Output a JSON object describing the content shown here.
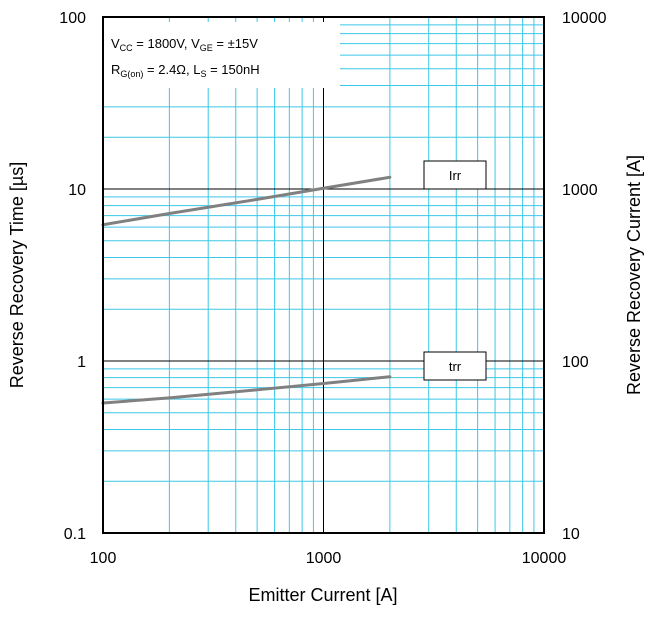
{
  "chart_data": {
    "type": "line",
    "x_scale": "log",
    "y_scale": "log",
    "xlim": [
      100,
      10000
    ],
    "ylim": [
      0.1,
      100
    ],
    "y2lim": [
      10,
      10000
    ],
    "grid": true,
    "xlabel": "Emitter Current [A]",
    "ylabel": "Reverse Recovery Time [µs]",
    "y2label": "Reverse Recovery Current [A]",
    "x_ticks": [
      "100",
      "1000",
      "10000"
    ],
    "y_ticks": [
      "0.1",
      "1",
      "10",
      "100"
    ],
    "y2_ticks": [
      "10",
      "100",
      "1000",
      "10000"
    ],
    "annotation": {
      "line1": {
        "v": "V",
        "cc": "CC",
        "mid": " = 1800V, V",
        "ge": "GE",
        "end": " = ±15V"
      },
      "line2": {
        "r": "R",
        "gon": "G(on)",
        "mid": " = 2.4Ω, L",
        "s": "S",
        "end": " = 150nH"
      }
    },
    "series": [
      {
        "name": "Irr",
        "axis": "right",
        "x": [
          100,
          200,
          500,
          1000,
          2000
        ],
        "values": [
          620,
          720,
          870,
          1010,
          1170
        ]
      },
      {
        "name": "trr",
        "axis": "left",
        "x": [
          100,
          200,
          500,
          1000,
          2000
        ],
        "values": [
          0.57,
          0.61,
          0.68,
          0.74,
          0.81
        ]
      }
    ],
    "colors": {
      "series_line": "#808080",
      "grid_minor": "#3cc8e6",
      "grid_major": "#000000"
    }
  }
}
